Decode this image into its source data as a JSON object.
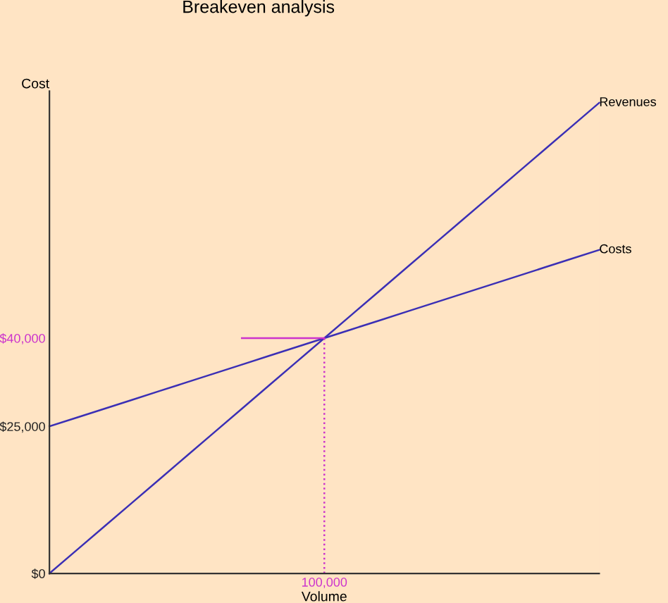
{
  "chart_data": {
    "type": "line",
    "title": "Breakeven analysis",
    "xlabel": "Volume",
    "ylabel": "Cost",
    "categories": [
      null,
      null,
      null,
      null,
      null,
      null,
      null,
      null,
      null,
      null,
      "100,000",
      null,
      null,
      null,
      null,
      null,
      null,
      null,
      null,
      null,
      null
    ],
    "ylim": [
      0,
      82000
    ],
    "yticks": [
      {
        "value": 0,
        "label": "$0"
      },
      {
        "value": 25000,
        "label": "$25,000"
      },
      {
        "value": 40000,
        "label": "$40,000"
      }
    ],
    "grid": false,
    "legend": false,
    "marker": "none",
    "ref_lines": [
      {
        "axis": "x",
        "value": "100,000",
        "color": "#cc33cc",
        "line_style": "dotted"
      }
    ],
    "series": [
      {
        "name": "Revenues",
        "color": "#3b2fb5",
        "values": [
          0,
          4000,
          8000,
          12000,
          16000,
          20000,
          24000,
          28000,
          32000,
          36000,
          40000,
          44000,
          48000,
          52000,
          56000,
          60000,
          64000,
          68000,
          72000,
          76000,
          80000
        ]
      },
      {
        "name": "Costs",
        "color": "#3b2fb5",
        "values": [
          25000,
          26500,
          28000,
          29500,
          31000,
          32500,
          34000,
          35500,
          37000,
          38500,
          40000,
          41500,
          43000,
          44500,
          46000,
          47500,
          49000,
          50500,
          52000,
          53500,
          55000
        ]
      },
      {
        "color": "#cc33cc",
        "values": [
          null,
          null,
          null,
          null,
          null,
          null,
          null,
          40000,
          40000,
          40000,
          40000,
          null,
          null,
          null,
          null,
          null,
          null,
          null,
          null,
          null,
          null
        ]
      }
    ]
  }
}
